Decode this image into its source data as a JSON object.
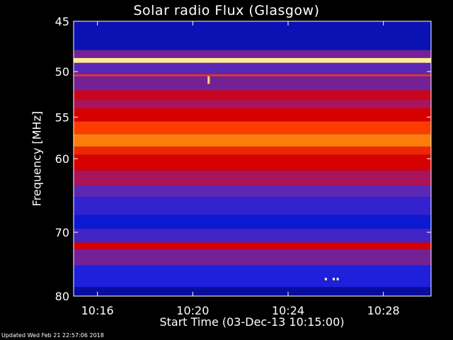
{
  "chart_data": {
    "type": "heatmap",
    "title": "Solar radio Flux (Glasgow)",
    "ylabel": "Frequency [MHz]",
    "xlabel": "Start Time (03-Dec-13 10:15:00)",
    "yscale": "log",
    "ylim": [
      80,
      45
    ],
    "y_ticks": [
      45,
      50,
      55,
      60,
      70,
      80
    ],
    "y_tick_labels": [
      "45",
      "50",
      "55",
      "60",
      "70",
      "80"
    ],
    "xlim": [
      "10:15:00",
      "10:30:00"
    ],
    "x_ticks": [
      "10:16",
      "10:20",
      "10:24",
      "10:28"
    ],
    "colormap": "red-temperature",
    "intensity_bands": [
      {
        "f_start": 45.0,
        "f_end": 47.8,
        "level": 0.08
      },
      {
        "f_start": 47.8,
        "f_end": 48.6,
        "level": 0.35
      },
      {
        "f_start": 48.6,
        "f_end": 49.1,
        "level": 0.97
      },
      {
        "f_start": 49.1,
        "f_end": 50.3,
        "level": 0.3
      },
      {
        "f_start": 50.3,
        "f_end": 50.5,
        "level": 0.75
      },
      {
        "f_start": 50.5,
        "f_end": 52.0,
        "level": 0.35
      },
      {
        "f_start": 52.0,
        "f_end": 53.0,
        "level": 0.55
      },
      {
        "f_start": 53.0,
        "f_end": 54.0,
        "level": 0.45
      },
      {
        "f_start": 54.0,
        "f_end": 55.5,
        "level": 0.6
      },
      {
        "f_start": 55.5,
        "f_end": 57.0,
        "level": 0.75
      },
      {
        "f_start": 57.0,
        "f_end": 58.5,
        "level": 0.82
      },
      {
        "f_start": 58.5,
        "f_end": 59.5,
        "level": 0.7
      },
      {
        "f_start": 59.5,
        "f_end": 61.5,
        "level": 0.6
      },
      {
        "f_start": 61.5,
        "f_end": 63.5,
        "level": 0.45
      },
      {
        "f_start": 63.5,
        "f_end": 65.0,
        "level": 0.3
      },
      {
        "f_start": 65.0,
        "f_end": 67.5,
        "level": 0.22
      },
      {
        "f_start": 67.5,
        "f_end": 69.5,
        "level": 0.12
      },
      {
        "f_start": 69.5,
        "f_end": 71.5,
        "level": 0.25
      },
      {
        "f_start": 71.5,
        "f_end": 72.5,
        "level": 0.6
      },
      {
        "f_start": 72.5,
        "f_end": 75.0,
        "level": 0.35
      },
      {
        "f_start": 75.0,
        "f_end": 78.5,
        "level": 0.18
      },
      {
        "f_start": 78.5,
        "f_end": 80.0,
        "level": 0.05
      }
    ],
    "bursts": [
      {
        "time": "10:20:40",
        "f_start": 50.5,
        "f_end": 51.3,
        "level": 0.95
      },
      {
        "time": "10:25:35",
        "f_start": 77.0,
        "f_end": 77.4,
        "level": 1.0
      },
      {
        "time": "10:25:55",
        "f_start": 77.0,
        "f_end": 77.4,
        "level": 1.0
      },
      {
        "time": "10:26:05",
        "f_start": 77.0,
        "f_end": 77.4,
        "level": 1.0
      }
    ]
  },
  "footer": "Updated Wed Feb 21 22:57:06 2018"
}
